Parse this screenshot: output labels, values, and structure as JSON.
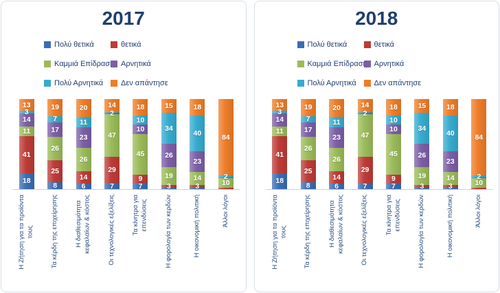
{
  "theme": {
    "background": "#FFFFFF",
    "panel_border": "#D7DDE7",
    "title_color": "#1F3E6E",
    "legend_text_color": "#1F3E6E",
    "category_label_color": "#254A7F",
    "axis_line_color": "#BCD4EA",
    "value_label_color": "#FFFFFF"
  },
  "chart_data": [
    {
      "type": "bar",
      "subtype": "100%-stacked-column",
      "title": "2017",
      "legend_position": "top",
      "grid": false,
      "ylim": [
        0,
        100
      ],
      "categories": [
        "Η Ζήτηση για τα προϊόντα\nτους",
        "Τα κέρδη της επιχείρησης",
        "Η διαθεσιμότητα\nκεφαλαίων & κόστος",
        "Οι τεχνολογικές εξελίξεις",
        "Τα κίνητρα για\nεπενδύσεις",
        "Η φορολογία των κερδών",
        "Η οικονομική πολιτική",
        "Άλλοι λόγοι"
      ],
      "series": [
        {
          "name": "Πολύ θετικά",
          "color": "#3A6DB4",
          "values": [
            18,
            8,
            6,
            7,
            7,
            2,
            2,
            0
          ],
          "labels": [
            "18",
            "8",
            "6",
            "7",
            "7",
            null,
            null,
            null
          ]
        },
        {
          "name": "θετικά",
          "color": "#BE3B36",
          "values": [
            41,
            25,
            14,
            29,
            9,
            3,
            3,
            2
          ],
          "labels": [
            "41",
            "25",
            "14",
            "29",
            "9",
            "3",
            "3",
            null
          ]
        },
        {
          "name": "Καμμιά Επίδραση",
          "color": "#9BBB59",
          "values": [
            11,
            26,
            26,
            47,
            45,
            19,
            14,
            10
          ],
          "labels": [
            "11",
            "26",
            "26",
            "47",
            "45",
            "19",
            "14",
            "10"
          ]
        },
        {
          "name": "Αρνητικά",
          "color": "#7C5FA6",
          "values": [
            14,
            17,
            23,
            2,
            10,
            26,
            23,
            1
          ],
          "labels": [
            "14",
            "17",
            "23",
            "2",
            "10",
            "26",
            "23",
            null
          ]
        },
        {
          "name": "Πολύ Αρνητικά",
          "color": "#36ABCF",
          "values": [
            3,
            7,
            11,
            1,
            10,
            34,
            40,
            2
          ],
          "labels": [
            "3",
            "7",
            "11",
            null,
            "10",
            "34",
            "40",
            "2"
          ]
        },
        {
          "name": "Δεν απάντησε",
          "color": "#EE7D28",
          "values": [
            13,
            19,
            20,
            14,
            18,
            15,
            18,
            84
          ],
          "labels": [
            "13",
            "19",
            "20",
            "14",
            "18",
            "15",
            "18",
            "84"
          ]
        }
      ]
    },
    {
      "type": "bar",
      "subtype": "100%-stacked-column",
      "title": "2018",
      "legend_position": "top",
      "grid": false,
      "ylim": [
        0,
        100
      ],
      "categories": [
        "Η Ζήτηση για τα προϊόντα\nτους",
        "Τα κέρδη της επιχείρησης",
        "Η διαθεσιμότητα\nκεφαλαίων & κόστος",
        "Οι τεχνολογικές εξελίξεις",
        "Τα κίνητρα για\nεπενδύσεις",
        "Η φορολογία των κερδών",
        "Η οικονομική πολιτική",
        "Άλλοι λόγοι"
      ],
      "series": [
        {
          "name": "Πολύ θετικά",
          "color": "#3A6DB4",
          "values": [
            18,
            8,
            6,
            7,
            7,
            2,
            2,
            0
          ],
          "labels": [
            "18",
            "8",
            "6",
            "7",
            "7",
            null,
            null,
            null
          ]
        },
        {
          "name": "θετικά",
          "color": "#BE3B36",
          "values": [
            41,
            25,
            14,
            29,
            9,
            3,
            3,
            2
          ],
          "labels": [
            "41",
            "25",
            "14",
            "29",
            "9",
            "3",
            "3",
            null
          ]
        },
        {
          "name": "Καμμιά Επίδραση",
          "color": "#9BBB59",
          "values": [
            11,
            26,
            26,
            47,
            45,
            19,
            14,
            10
          ],
          "labels": [
            "11",
            "26",
            "26",
            "47",
            "45",
            "19",
            "14",
            "10"
          ]
        },
        {
          "name": "Αρνητικά",
          "color": "#7C5FA6",
          "values": [
            14,
            17,
            23,
            2,
            10,
            26,
            23,
            1
          ],
          "labels": [
            "14",
            "17",
            "23",
            "2",
            "10",
            "26",
            "23",
            null
          ]
        },
        {
          "name": "Πολύ Αρνητικά",
          "color": "#36ABCF",
          "values": [
            3,
            7,
            11,
            1,
            10,
            34,
            40,
            2
          ],
          "labels": [
            "3",
            "7",
            "11",
            null,
            "10",
            "34",
            "40",
            "2"
          ]
        },
        {
          "name": "Δεν απάντησε",
          "color": "#EE7D28",
          "values": [
            13,
            19,
            20,
            14,
            18,
            15,
            18,
            84
          ],
          "labels": [
            "13",
            "19",
            "20",
            "14",
            "18",
            "15",
            "18",
            "84"
          ]
        }
      ]
    }
  ]
}
